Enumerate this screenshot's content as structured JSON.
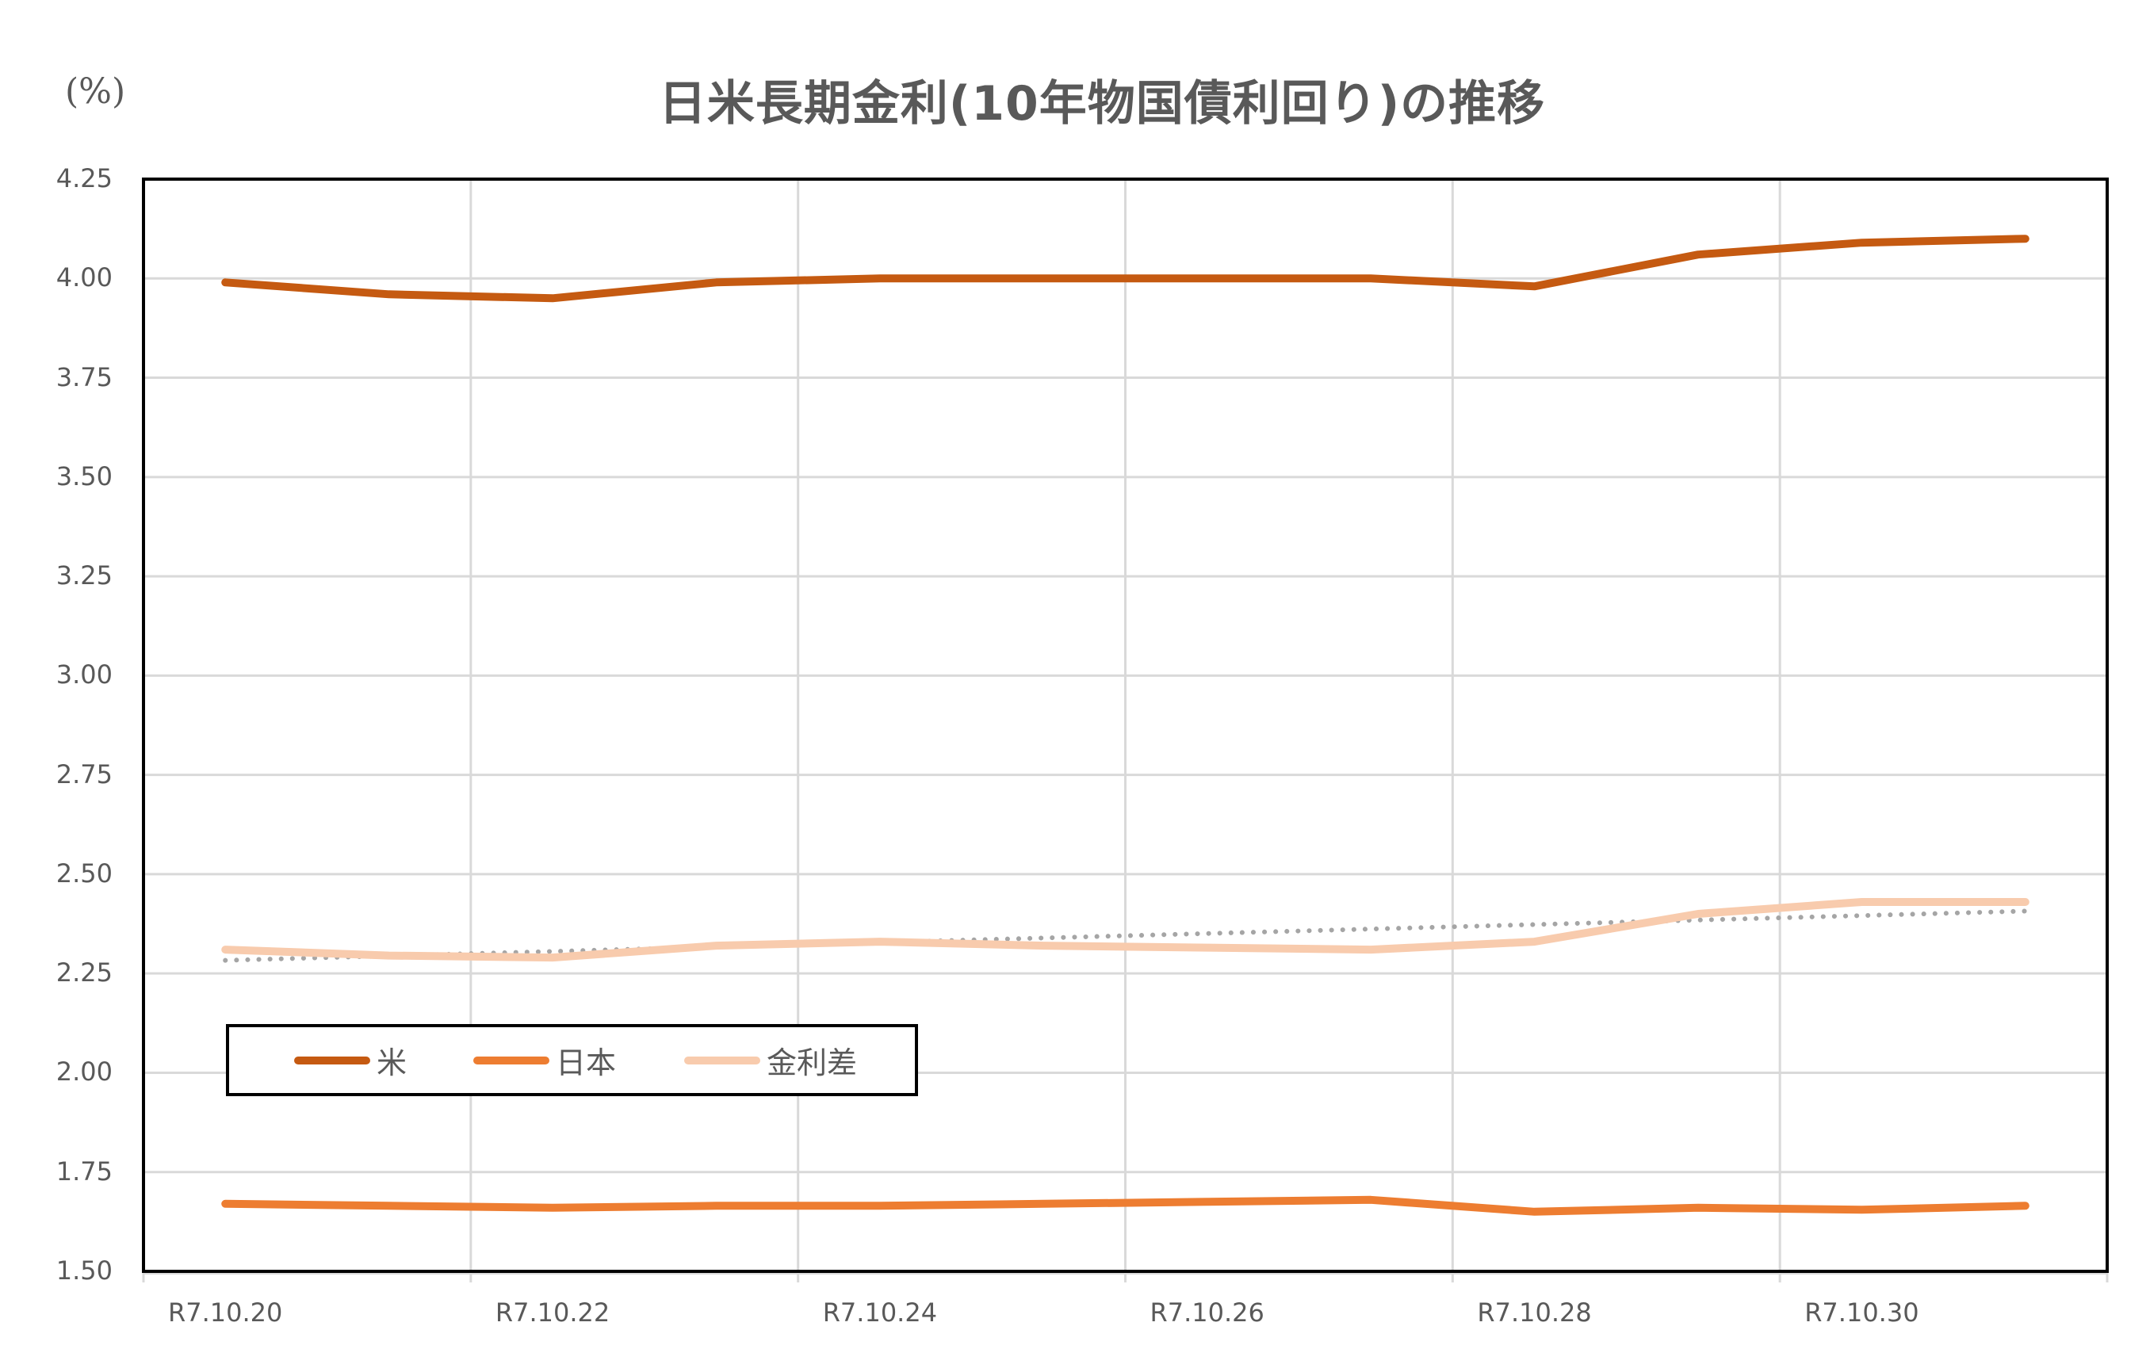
{
  "chart_data": {
    "type": "line",
    "title": "日米長期金利(10年物国債利回り)の推移",
    "ylabel": "(%)",
    "xlabel": "",
    "ylim": [
      1.5,
      4.25
    ],
    "yticks": [
      "4.25",
      "4.00",
      "3.75",
      "3.50",
      "3.25",
      "3.00",
      "2.75",
      "2.50",
      "2.25",
      "2.00",
      "1.75",
      "1.50"
    ],
    "x": [
      "R7.10.20",
      "R7.10.21",
      "R7.10.22",
      "R7.10.23",
      "R7.10.24",
      "R7.10.25",
      "R7.10.26",
      "R7.10.27",
      "R7.10.28",
      "R7.10.29",
      "R7.10.30",
      "R7.10.31"
    ],
    "xtick_labels": [
      "R7.10.20",
      "R7.10.22",
      "R7.10.24",
      "R7.10.26",
      "R7.10.28",
      "R7.10.30"
    ],
    "series": [
      {
        "name": "米",
        "color": "#C55A11",
        "values": [
          3.99,
          3.96,
          3.95,
          3.99,
          4.0,
          4.0,
          4.0,
          4.0,
          3.98,
          4.06,
          4.09,
          4.1
        ]
      },
      {
        "name": "日本",
        "color": "#ED7D31",
        "values": [
          1.67,
          1.665,
          1.66,
          1.665,
          1.665,
          1.67,
          1.675,
          1.68,
          1.65,
          1.66,
          1.655,
          1.665
        ]
      },
      {
        "name": "金利差",
        "color": "#F8CBAD",
        "values": [
          2.31,
          2.295,
          2.29,
          2.32,
          2.33,
          2.32,
          2.315,
          2.31,
          2.33,
          2.4,
          2.43,
          2.43
        ]
      }
    ],
    "trendline": {
      "series": "金利差",
      "type": "linear",
      "style": "dotted",
      "color": "#A5A5A5",
      "start": 2.283,
      "end": 2.407
    },
    "grid": {
      "horizontal": true,
      "vertical": true,
      "vertical_every": 2
    },
    "legend": {
      "position": "inside-lower-left",
      "entries": [
        "米",
        "日本",
        "金利差"
      ]
    }
  },
  "labels": {
    "title": "日米長期金利(10年物国債利回り)の推移",
    "unit": "(%)"
  }
}
